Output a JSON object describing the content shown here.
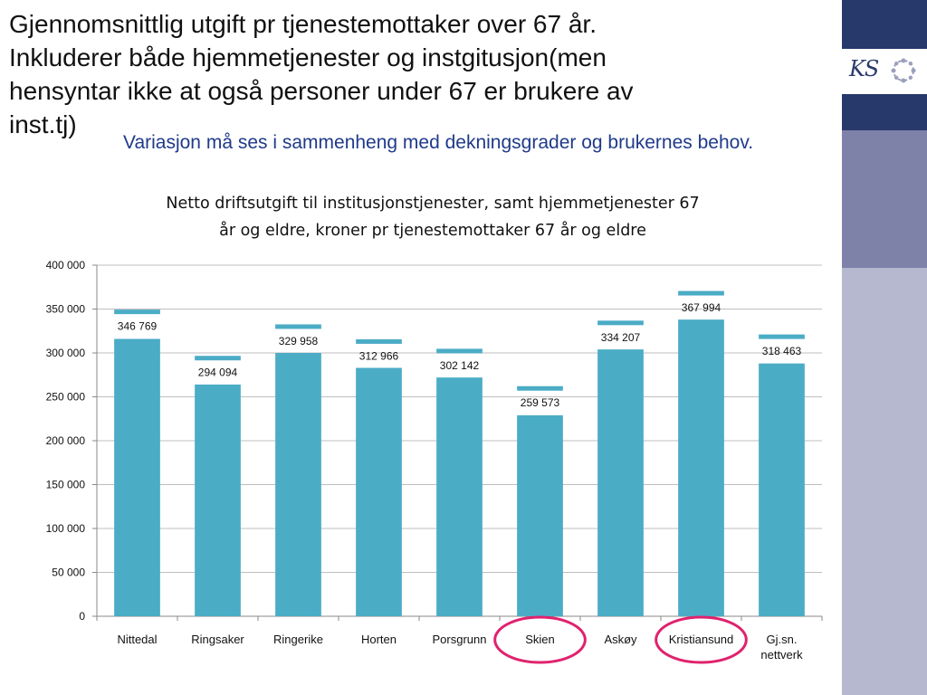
{
  "slide": {
    "heading": "Gjennomsnittlig utgift pr tjenestemottaker over 67 år.\nInkluderer både hjemmetjenester og instgitusjon(men\nhensyntar ikke at også personer under 67 er brukere av\ninst.tj)",
    "subheading": "Variasjon må ses i sammenheng med dekningsgrader og brukernes behov."
  },
  "branding": {
    "logo_text": "KS",
    "logo_icon": "ring-of-people-icon",
    "sidebar_colors": [
      "#27386b",
      "#ffffff",
      "#27386b",
      "#7e81a8",
      "#b6b8cf"
    ]
  },
  "colors": {
    "bar": "#4bacc6",
    "highlight_circle": "#e0226e",
    "grid": "#bfbfbf"
  },
  "chart_data": {
    "type": "bar",
    "title_lines": [
      "Netto driftsutgift  til institusjonstjenester,  samt hjemmetjenester   67",
      "år og eldre, kroner pr tjenestemottaker  67 år og eldre"
    ],
    "categories": [
      "Nittedal",
      "Ringsaker",
      "Ringerike",
      "Horten",
      "Porsgrunn",
      "Skien",
      "Askøy",
      "Kristiansund",
      "Gj.sn.\nnettverk"
    ],
    "values": [
      316000,
      264000,
      300000,
      283000,
      272000,
      229000,
      304000,
      338000,
      288000
    ],
    "markers": [
      346769,
      294094,
      329958,
      312966,
      302142,
      259573,
      334207,
      367994,
      318463
    ],
    "labels": [
      "346 769",
      "294 094",
      "329 958",
      "312 966",
      "302 142",
      "259 573",
      "334 207",
      "367 994",
      "318 463"
    ],
    "highlighted": [
      "Skien",
      "Kristiansund"
    ],
    "ylim": [
      0,
      400000
    ],
    "yticks": [
      0,
      50000,
      100000,
      150000,
      200000,
      250000,
      300000,
      350000,
      400000
    ],
    "ytick_labels": [
      "0",
      "50 000",
      "100 000",
      "150 000",
      "200 000",
      "250 000",
      "300 000",
      "350 000",
      "400 000"
    ],
    "grid": true,
    "legend": "none"
  }
}
